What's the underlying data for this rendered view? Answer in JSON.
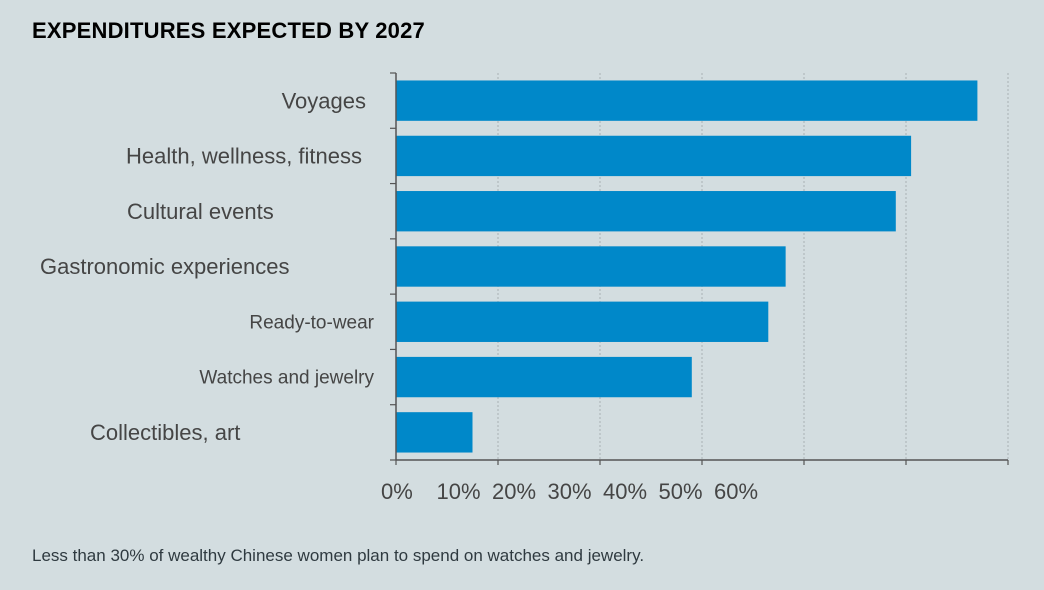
{
  "title": "EXPENDITURES EXPECTED BY 2027",
  "caption": "Less than 30% of wealthy Chinese women plan to spend on watches and jewelry.",
  "colors": {
    "bar": "#0088c9",
    "background": "#d3dde0",
    "axis": "#555555",
    "grid": "#a9b1b4",
    "label": "#454545"
  },
  "chart_data": {
    "type": "bar",
    "orientation": "horizontal",
    "categories": [
      "Voyages",
      "Health, wellness, fitness",
      "Cultural events",
      "Gastronomic experiences",
      "Ready-to-wear",
      "Watches and jewelry",
      "Collectibles, art"
    ],
    "values": [
      57,
      50.5,
      49,
      38.2,
      36.5,
      29,
      7.5
    ],
    "x_tick_labels": [
      "0%",
      "10%",
      "20%",
      "30%",
      "40%",
      "50%",
      "60%"
    ],
    "xlim": [
      0,
      60
    ],
    "grid": "vertical"
  }
}
